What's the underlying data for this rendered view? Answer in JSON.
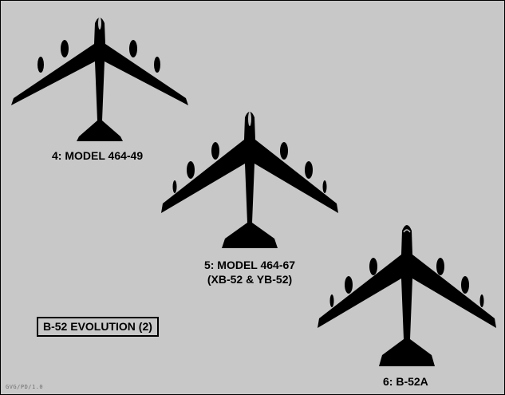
{
  "aircraft": [
    {
      "label": "4: MODEL 464-49",
      "sublabel": ""
    },
    {
      "label": "5: MODEL 464-67",
      "sublabel": "(XB-52 & YB-52)"
    },
    {
      "label": "6: B-52A",
      "sublabel": ""
    }
  ],
  "title": "B-52 EVOLUTION (2)",
  "credit": "GVG/PD/1.0",
  "colors": {
    "background": "#c8c8c8",
    "silhouette": "#000000",
    "canopy": "#bdbdbd"
  }
}
